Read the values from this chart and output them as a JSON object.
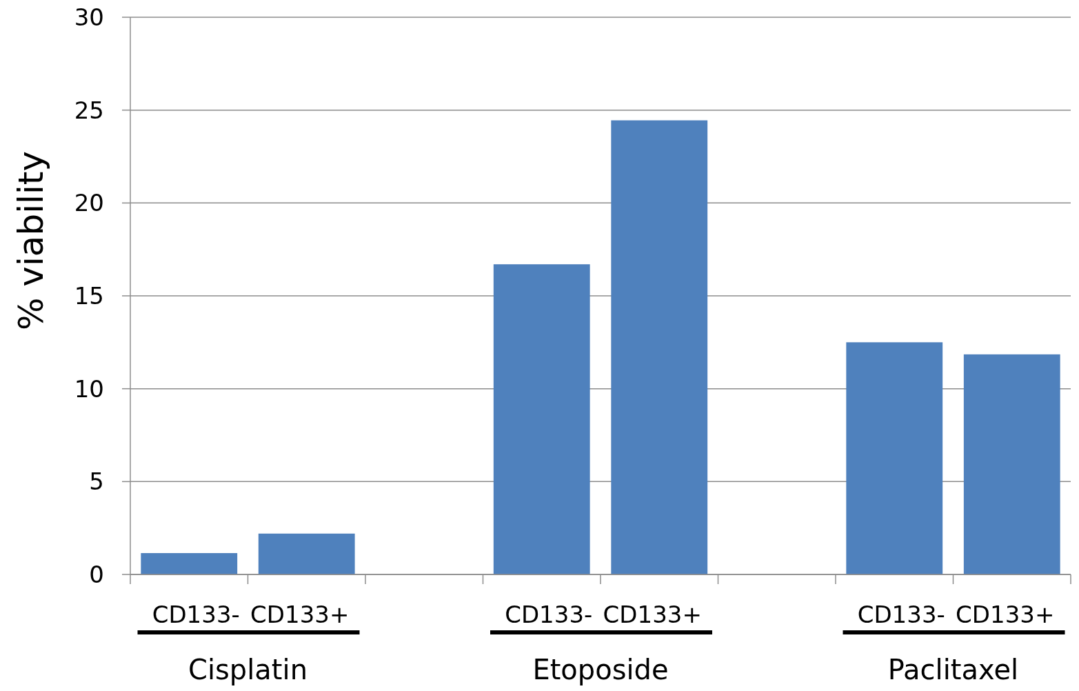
{
  "chart_data": {
    "type": "bar",
    "ylabel": "% viability",
    "categories": [
      "CD133-",
      "CD133+",
      null,
      "CD133-",
      "CD133+",
      null,
      "CD133-",
      "CD133+"
    ],
    "values": [
      1.15,
      2.2,
      null,
      16.7,
      24.45,
      null,
      12.5,
      11.85
    ],
    "color": "#4f81bd",
    "ylim": [
      0,
      30
    ],
    "yticks": [
      0,
      5,
      10,
      15,
      20,
      25,
      30
    ],
    "grid": "y",
    "annotations": [
      "Cisplatin",
      "Etoposide",
      "Paclitaxel"
    ]
  }
}
